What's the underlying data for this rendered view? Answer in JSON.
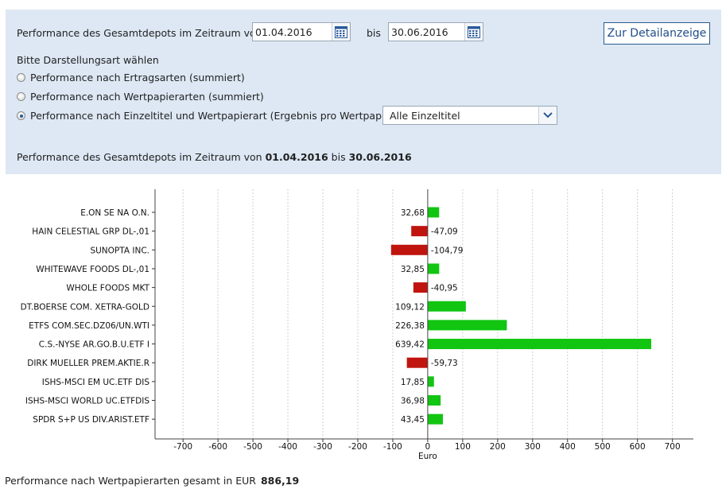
{
  "filter": {
    "period_label": "Performance des Gesamtdepots im Zeitraum von",
    "from_date": "01.04.2016",
    "to_label": "bis",
    "to_date": "30.06.2016",
    "detail_button": "Zur Detailanzeige",
    "display_mode_label": "Bitte Darstellungsart wählen",
    "options": [
      {
        "label": "Performance nach Ertragsarten (summiert)",
        "checked": false
      },
      {
        "label": "Performance nach Wertpapierarten (summiert)",
        "checked": false
      },
      {
        "label": "Performance nach Einzeltitel und Wertpapierart (Ergebnis pro Wertpapier)",
        "checked": true
      }
    ],
    "select_value": "Alle Einzeltitel",
    "icons": {
      "calendar": "calendar-icon",
      "dropdown": "chevron-down-icon"
    }
  },
  "summary": {
    "prefix": "Performance des Gesamtdepots im Zeitraum von",
    "from": "01.04.2016",
    "middle": "bis",
    "to": "30.06.2016"
  },
  "chart_data": {
    "type": "bar",
    "orientation": "horizontal",
    "categories": [
      "E.ON SE NA O.N.",
      "HAIN CELESTIAL GRP DL-,01",
      "SUNOPTA INC.",
      "WHITEWAVE FOODS    DL-,01",
      "WHOLE FOODS MKT",
      "DT.BOERSE COM. XETRA-GOLD",
      "ETFS COM.SEC.DZ06/UN.WTI",
      "C.S.-NYSE AR.GO.B.U.ETF I",
      "DIRK MUELLER PREM.AKTIE.R",
      "ISHS-MSCI EM UC.ETF DIS",
      "ISHS-MSCI WORLD UC.ETFDIS",
      "SPDR S+P US DIV.ARIST.ETF"
    ],
    "values": [
      32.68,
      -47.09,
      -104.79,
      32.85,
      -40.95,
      109.12,
      226.38,
      639.42,
      -59.73,
      17.85,
      36.98,
      43.45
    ],
    "value_labels": [
      "32,68",
      "-47,09",
      "-104,79",
      "32,85",
      "-40,95",
      "109,12",
      "226,38",
      "639,42",
      "-59,73",
      "17,85",
      "36,98",
      "43,45"
    ],
    "xlabel": "Euro",
    "xlim": [
      -780,
      760
    ],
    "xticks": [
      -700,
      -600,
      -500,
      -400,
      -300,
      -200,
      -100,
      0,
      100,
      200,
      300,
      400,
      500,
      600,
      700
    ],
    "grid": true,
    "colors": {
      "positive": "#11c511",
      "negative": "#c0140f"
    }
  },
  "footer": {
    "label": "Performance nach Wertpapierarten gesamt in EUR",
    "total": "886,19"
  }
}
